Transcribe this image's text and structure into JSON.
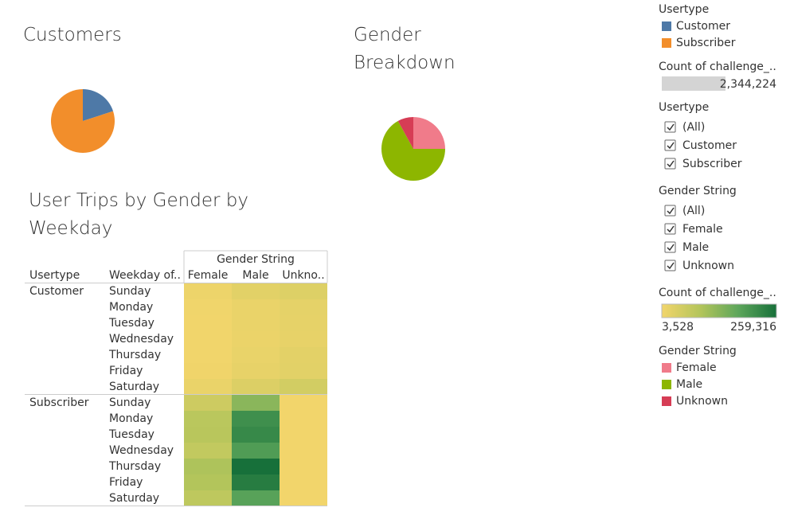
{
  "chart_data": [
    {
      "type": "pie",
      "title": "Customers",
      "legend_title": "Usertype",
      "categories": [
        "Customer",
        "Subscriber"
      ],
      "values": [
        20,
        80
      ],
      "colors": [
        "#4e79a7",
        "#f28e2b"
      ],
      "size_legend": {
        "title": "Count of challenge_..",
        "value": {
          "value": 2344224,
          "label": "2,344,224"
        }
      }
    },
    {
      "type": "pie",
      "title": "Gender Breakdown",
      "legend_title": "Gender String",
      "categories": [
        "Female",
        "Male",
        "Unknown"
      ],
      "values": [
        25,
        67,
        8
      ],
      "colors": [
        "#f07b8a",
        "#8db600",
        "#d63d55"
      ]
    },
    {
      "type": "heatmap",
      "title": "User Trips by Gender by Weekday",
      "row_headers": [
        "Usertype",
        "Weekday of.."
      ],
      "column_title": "Gender String",
      "columns": [
        "Female",
        "Male",
        "Unkno.."
      ],
      "row_groups": [
        {
          "name": "Customer",
          "rows": [
            "Sunday",
            "Monday",
            "Tuesday",
            "Wednesday",
            "Thursday",
            "Friday",
            "Saturday"
          ]
        },
        {
          "name": "Subscriber",
          "rows": [
            "Sunday",
            "Monday",
            "Tuesday",
            "Wednesday",
            "Thursday",
            "Friday",
            "Saturday"
          ]
        }
      ],
      "values": [
        [
          [
            10000,
            25000,
            32000
          ],
          [
            6000,
            15000,
            22000
          ],
          [
            5000,
            14000,
            20000
          ],
          [
            4500,
            13000,
            18000
          ],
          [
            5500,
            16000,
            24000
          ],
          [
            6500,
            18000,
            26000
          ],
          [
            14000,
            34000,
            48000
          ]
        ],
        [
          [
            55000,
            130000,
            4000
          ],
          [
            80000,
            210000,
            3800
          ],
          [
            82000,
            220000,
            3700
          ],
          [
            70000,
            190000,
            3600
          ],
          [
            95000,
            259316,
            3800
          ],
          [
            90000,
            240000,
            3700
          ],
          [
            75000,
            180000,
            3528
          ]
        ]
      ],
      "color_legend": {
        "title": "Count of challenge_..",
        "range": [
          {
            "value": 3528,
            "label": "3,528"
          },
          {
            "value": 259316,
            "label": "259,316"
          }
        ],
        "colors": [
          "#f2d56b",
          "#b4c55b",
          "#5da65b",
          "#17703a"
        ]
      }
    }
  ],
  "filters": [
    {
      "title": "Usertype",
      "options": [
        "(All)",
        "Customer",
        "Subscriber"
      ],
      "checked": true
    },
    {
      "title": "Gender String",
      "options": [
        "(All)",
        "Female",
        "Male",
        "Unknown"
      ],
      "checked": true
    }
  ]
}
